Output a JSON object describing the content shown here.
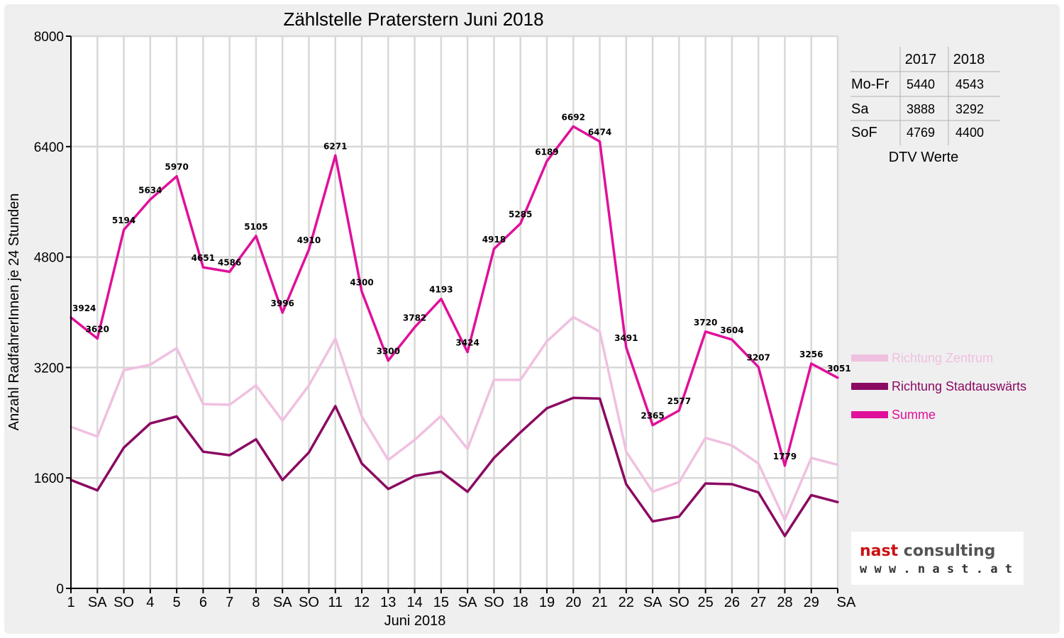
{
  "chart_data": {
    "type": "line",
    "title": "Zählstelle Praterstern Juni 2018",
    "xlabel": "Juni 2018",
    "ylabel": "Anzahl RadfahrerInnen je 24 Stunden",
    "ylim": [
      0,
      8000
    ],
    "yticks": [
      "0",
      "1600",
      "3200",
      "4800",
      "6400",
      "8000"
    ],
    "grid": true,
    "legend_position": "right",
    "categories": [
      "1",
      "SA",
      "SO",
      "4",
      "5",
      "6",
      "7",
      "8",
      "SA",
      "SO",
      "11",
      "12",
      "13",
      "14",
      "15",
      "SA",
      "SO",
      "18",
      "19",
      "20",
      "21",
      "22",
      "SA",
      "SO",
      "25",
      "26",
      "27",
      "28",
      "29",
      "SA"
    ],
    "weekend_categories": [
      2,
      9,
      16,
      23
    ],
    "series": [
      {
        "name": "Richtung Zentrum",
        "color": "#f0c0e0",
        "values": [
          2340,
          2200,
          3160,
          3240,
          3480,
          2670,
          2660,
          2940,
          2430,
          2940,
          3620,
          2490,
          1860,
          2150,
          2500,
          2020,
          3020,
          3020,
          3580,
          3930,
          3720,
          1980,
          1400,
          1540,
          2180,
          2070,
          1810,
          990,
          1890,
          1790
        ]
      },
      {
        "name": "Richtung Stadtauswärts",
        "color": "#8b0a62",
        "values": [
          1570,
          1420,
          2040,
          2390,
          2490,
          1980,
          1930,
          2160,
          1570,
          1970,
          2640,
          1810,
          1440,
          1630,
          1690,
          1400,
          1890,
          2260,
          2610,
          2760,
          2750,
          1510,
          970,
          1040,
          1520,
          1510,
          1390,
          760,
          1350,
          1250
        ]
      },
      {
        "name": "Summe",
        "color": "#e0109a",
        "values": [
          3924,
          3620,
          5194,
          5634,
          5970,
          4651,
          4586,
          5105,
          3996,
          4910,
          6271,
          4300,
          3300,
          3782,
          4193,
          3424,
          4918,
          5285,
          6189,
          6692,
          6474,
          3491,
          2365,
          2577,
          3720,
          3604,
          3207,
          1779,
          3256,
          3051
        ]
      }
    ]
  },
  "dtv_table": {
    "headers": [
      "",
      "2017",
      "2018"
    ],
    "rows": [
      {
        "label": "Mo-Fr",
        "v2017": "5440",
        "v2018": "4543"
      },
      {
        "label": "Sa",
        "v2017": "3888",
        "v2018": "3292"
      },
      {
        "label": "SoF",
        "v2017": "4769",
        "v2018": "4400"
      }
    ],
    "caption": "DTV Werte"
  },
  "logo": {
    "line1": "nast consulting",
    "line2": "w w w . n a s t . a t",
    "color_red": "#cc1111",
    "color_gray": "#555555"
  }
}
